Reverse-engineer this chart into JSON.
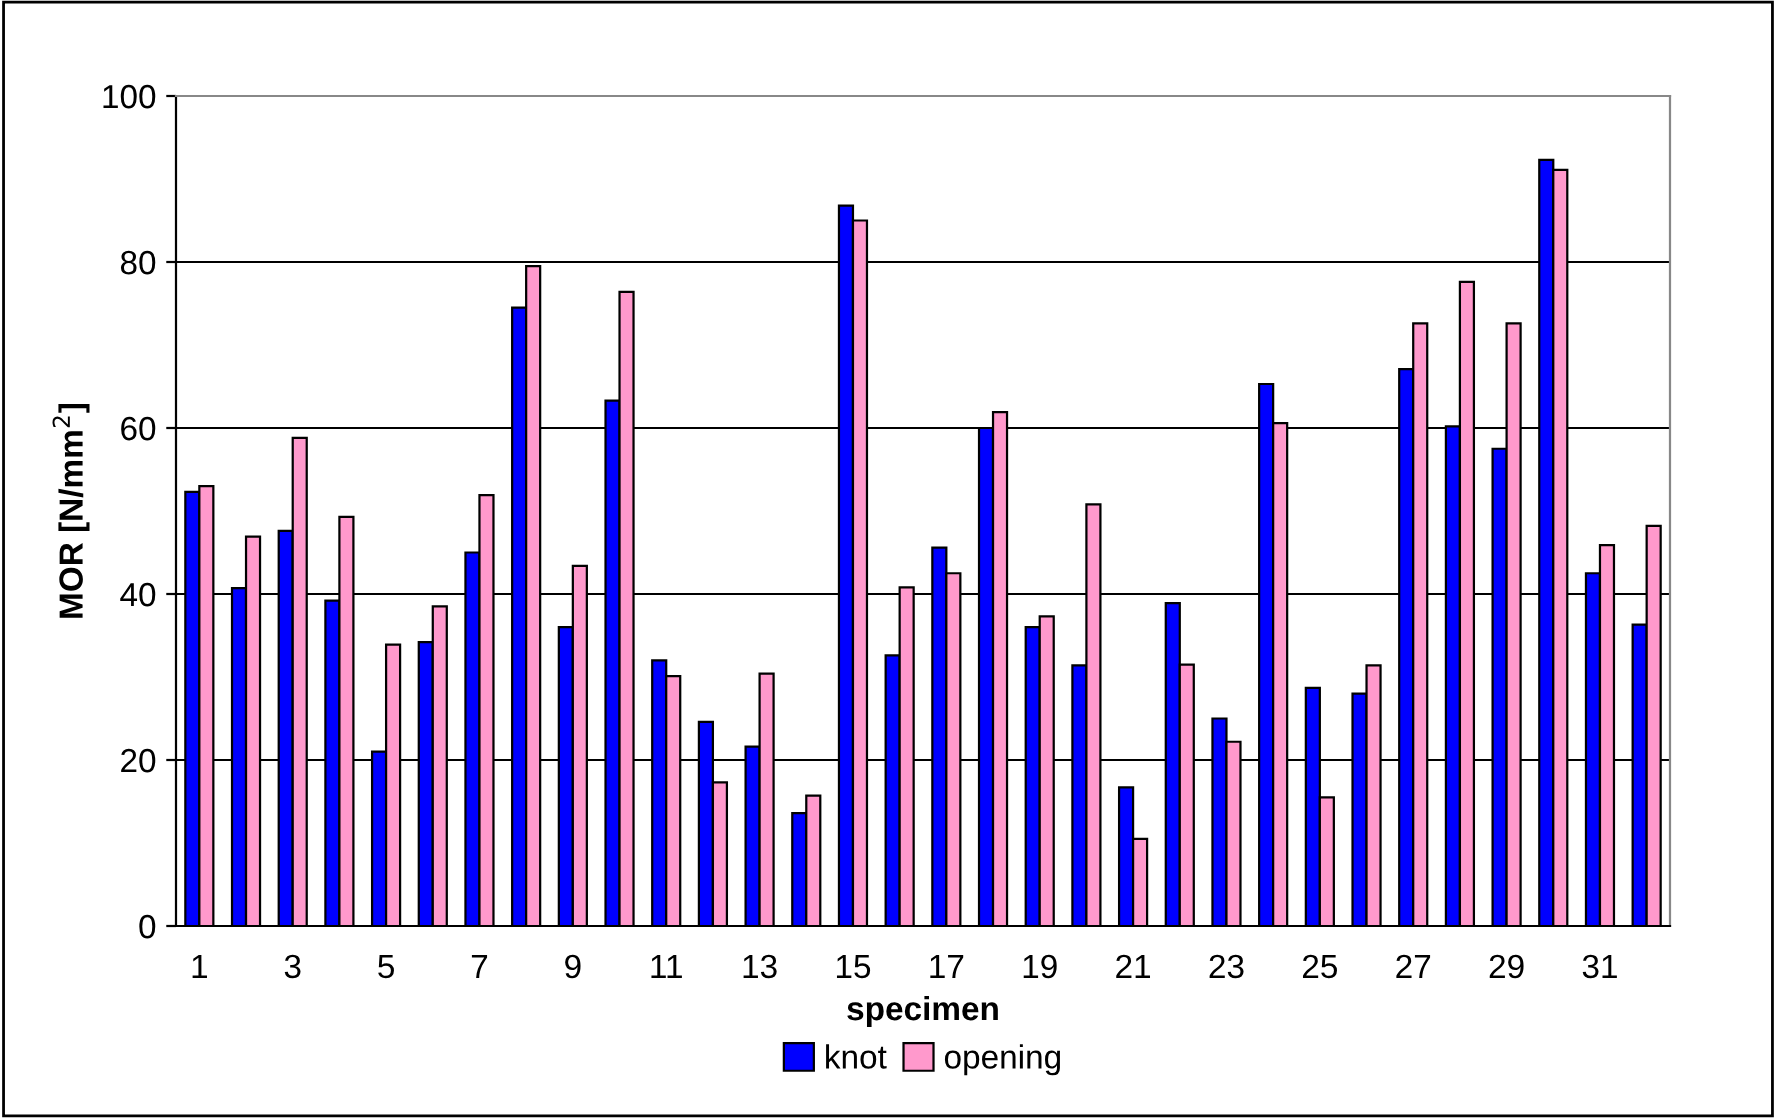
{
  "chart_data": {
    "type": "bar",
    "xlabel": "specimen",
    "ylabel": "MOR [N/mm$^{2}$]",
    "categories": [
      "1",
      null,
      "3",
      null,
      "5",
      null,
      "7",
      null,
      "9",
      null,
      "11",
      null,
      "13",
      null,
      "15",
      null,
      "17",
      null,
      "19",
      null,
      "21",
      null,
      "23",
      null,
      "25",
      null,
      "27",
      null,
      "29",
      null,
      "31",
      null
    ],
    "series": [
      {
        "name": "knot",
        "color": "#0000ff",
        "values": [
          52.3,
          40.7,
          47.6,
          39.2,
          21,
          34.2,
          45,
          74.5,
          36,
          63.3,
          32,
          24.6,
          21.6,
          13.6,
          86.8,
          32.6,
          45.6,
          60,
          36,
          31.4,
          16.7,
          38.9,
          25,
          65.3,
          28.7,
          28,
          67.1,
          60.2,
          57.5,
          92.3,
          42.5,
          36.3
        ]
      },
      {
        "name": "opening",
        "color": "#ff99cc",
        "values": [
          53,
          46.9,
          58.8,
          49.3,
          33.9,
          38.5,
          51.9,
          79.5,
          43.4,
          76.4,
          30.1,
          17.3,
          30.4,
          15.7,
          85,
          40.8,
          42.5,
          61.9,
          37.3,
          50.8,
          10.5,
          31.5,
          22.2,
          60.6,
          15.5,
          31.4,
          72.6,
          77.6,
          72.6,
          91.1,
          45.9,
          48.2
        ]
      }
    ],
    "ylim": [
      0,
      100
    ],
    "yticks": [
      0,
      20,
      40,
      60,
      80,
      100
    ],
    "grid": "y",
    "legend": "bottom"
  }
}
